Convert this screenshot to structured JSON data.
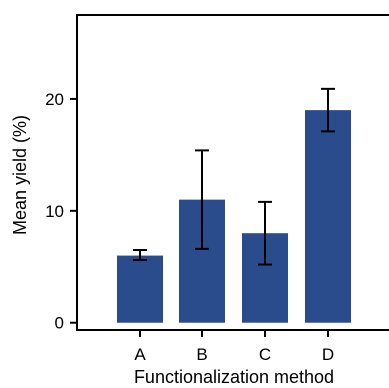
{
  "chart_data": {
    "type": "bar",
    "title": "",
    "xlabel": "Functionalization method",
    "ylabel": "Mean yield (%)",
    "categories": [
      "A",
      "B",
      "C",
      "D"
    ],
    "values": [
      6.0,
      11.0,
      8.0,
      19.0
    ],
    "error_low": [
      5.6,
      6.6,
      5.2,
      17.1
    ],
    "error_high": [
      6.5,
      15.4,
      10.8,
      20.9
    ],
    "ylim": [
      -0.65,
      27.5
    ],
    "yticks": [
      0,
      10,
      20
    ],
    "grid": false,
    "legend": "none",
    "bar_color": "#2B4C8C"
  }
}
